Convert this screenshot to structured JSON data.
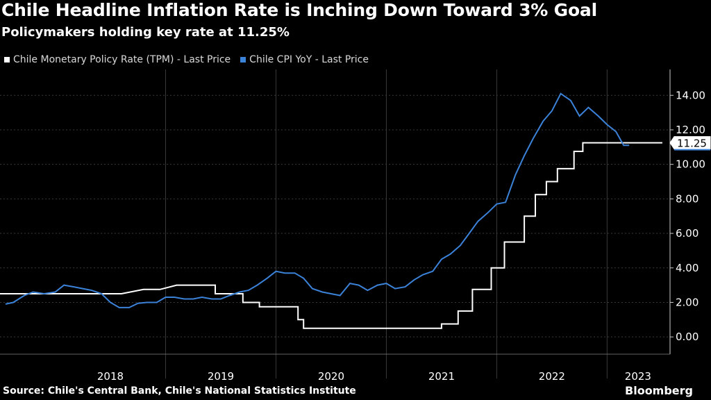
{
  "title": "Chile Headline Inflation Rate is Inching Down Toward 3% Goal",
  "subtitle": "Policymakers holding key rate at 11.25%",
  "source": "Source: Chile's Central Bank, Chile's National Statistics Institute",
  "brand": "Bloomberg",
  "colors": {
    "tpm": "#ffffff",
    "cpi": "#3b82d9",
    "background": "#000000",
    "grid": "#3a3a3a"
  },
  "chart_data": {
    "type": "line",
    "title": "Chile Headline Inflation Rate is Inching Down Toward 3% Goal",
    "subtitle": "Policymakers holding key rate at 11.25%",
    "xlabel": "",
    "ylabel": "",
    "x_unit": "year (decimal)",
    "xlim": [
      2017.5,
      2023.57
    ],
    "ylim": [
      -1.0,
      15.5
    ],
    "yticks": [
      0,
      2,
      4,
      6,
      8,
      10,
      12,
      14
    ],
    "ytick_labels": [
      "0.00",
      "2.00",
      "4.00",
      "6.00",
      "8.00",
      "10.00",
      "12.00",
      "14.00"
    ],
    "year_labels": [
      {
        "label": "2018",
        "center": 2018.5
      },
      {
        "label": "2019",
        "center": 2019.5
      },
      {
        "label": "2020",
        "center": 2020.5
      },
      {
        "label": "2021",
        "center": 2021.5
      },
      {
        "label": "2022",
        "center": 2022.5
      },
      {
        "label": "2023",
        "center": 2023.28
      }
    ],
    "year_dividers": [
      2019,
      2020,
      2021,
      2022,
      2023
    ],
    "last_value_label": "11.25",
    "series": [
      {
        "name": "Chile Monetary Policy Rate (TPM) - Last Price",
        "style": "step",
        "points": [
          [
            2017.5,
            2.5
          ],
          [
            2018.0,
            2.5
          ],
          [
            2018.5,
            2.5
          ],
          [
            2018.6,
            2.5
          ],
          [
            2018.8,
            2.75
          ],
          [
            2018.95,
            2.75
          ],
          [
            2019.1,
            3.0
          ],
          [
            2019.45,
            3.0
          ],
          [
            2019.45,
            2.5
          ],
          [
            2019.7,
            2.5
          ],
          [
            2019.7,
            2.0
          ],
          [
            2019.85,
            2.0
          ],
          [
            2019.85,
            1.75
          ],
          [
            2020.2,
            1.75
          ],
          [
            2020.2,
            1.0
          ],
          [
            2020.25,
            1.0
          ],
          [
            2020.25,
            0.5
          ],
          [
            2021.5,
            0.5
          ],
          [
            2021.5,
            0.75
          ],
          [
            2021.65,
            0.75
          ],
          [
            2021.65,
            1.5
          ],
          [
            2021.78,
            1.5
          ],
          [
            2021.78,
            2.75
          ],
          [
            2021.95,
            2.75
          ],
          [
            2021.95,
            4.0
          ],
          [
            2022.07,
            4.0
          ],
          [
            2022.07,
            5.5
          ],
          [
            2022.25,
            5.5
          ],
          [
            2022.25,
            7.0
          ],
          [
            2022.35,
            7.0
          ],
          [
            2022.35,
            8.25
          ],
          [
            2022.45,
            8.25
          ],
          [
            2022.45,
            9.0
          ],
          [
            2022.55,
            9.0
          ],
          [
            2022.55,
            9.75
          ],
          [
            2022.7,
            9.75
          ],
          [
            2022.7,
            10.75
          ],
          [
            2022.78,
            10.75
          ],
          [
            2022.78,
            11.25
          ],
          [
            2023.5,
            11.25
          ]
        ]
      },
      {
        "name": "Chile CPI YoY - Last Price",
        "style": "line",
        "points": [
          [
            2017.55,
            1.9
          ],
          [
            2017.62,
            2.0
          ],
          [
            2017.72,
            2.4
          ],
          [
            2017.8,
            2.6
          ],
          [
            2017.9,
            2.5
          ],
          [
            2018.0,
            2.6
          ],
          [
            2018.08,
            3.0
          ],
          [
            2018.17,
            2.9
          ],
          [
            2018.25,
            2.8
          ],
          [
            2018.33,
            2.7
          ],
          [
            2018.42,
            2.5
          ],
          [
            2018.5,
            2.0
          ],
          [
            2018.58,
            1.7
          ],
          [
            2018.67,
            1.7
          ],
          [
            2018.75,
            1.95
          ],
          [
            2018.83,
            2.0
          ],
          [
            2018.92,
            2.0
          ],
          [
            2019.0,
            2.3
          ],
          [
            2019.08,
            2.3
          ],
          [
            2019.17,
            2.2
          ],
          [
            2019.25,
            2.2
          ],
          [
            2019.33,
            2.3
          ],
          [
            2019.42,
            2.2
          ],
          [
            2019.5,
            2.2
          ],
          [
            2019.58,
            2.4
          ],
          [
            2019.67,
            2.6
          ],
          [
            2019.75,
            2.7
          ],
          [
            2019.83,
            3.0
          ],
          [
            2019.92,
            3.4
          ],
          [
            2020.0,
            3.8
          ],
          [
            2020.08,
            3.7
          ],
          [
            2020.17,
            3.7
          ],
          [
            2020.25,
            3.4
          ],
          [
            2020.33,
            2.8
          ],
          [
            2020.42,
            2.6
          ],
          [
            2020.5,
            2.5
          ],
          [
            2020.58,
            2.4
          ],
          [
            2020.67,
            3.1
          ],
          [
            2020.75,
            3.0
          ],
          [
            2020.83,
            2.7
          ],
          [
            2020.92,
            3.0
          ],
          [
            2021.0,
            3.1
          ],
          [
            2021.08,
            2.8
          ],
          [
            2021.17,
            2.9
          ],
          [
            2021.25,
            3.3
          ],
          [
            2021.33,
            3.6
          ],
          [
            2021.42,
            3.8
          ],
          [
            2021.5,
            4.5
          ],
          [
            2021.58,
            4.8
          ],
          [
            2021.67,
            5.3
          ],
          [
            2021.75,
            6.0
          ],
          [
            2021.83,
            6.7
          ],
          [
            2021.92,
            7.2
          ],
          [
            2022.0,
            7.7
          ],
          [
            2022.08,
            7.8
          ],
          [
            2022.17,
            9.4
          ],
          [
            2022.25,
            10.5
          ],
          [
            2022.33,
            11.5
          ],
          [
            2022.42,
            12.5
          ],
          [
            2022.5,
            13.1
          ],
          [
            2022.58,
            14.1
          ],
          [
            2022.67,
            13.7
          ],
          [
            2022.75,
            12.8
          ],
          [
            2022.83,
            13.3
          ],
          [
            2022.92,
            12.8
          ],
          [
            2023.0,
            12.3
          ],
          [
            2023.08,
            11.9
          ],
          [
            2023.15,
            11.1
          ],
          [
            2023.2,
            11.1
          ]
        ]
      }
    ]
  }
}
